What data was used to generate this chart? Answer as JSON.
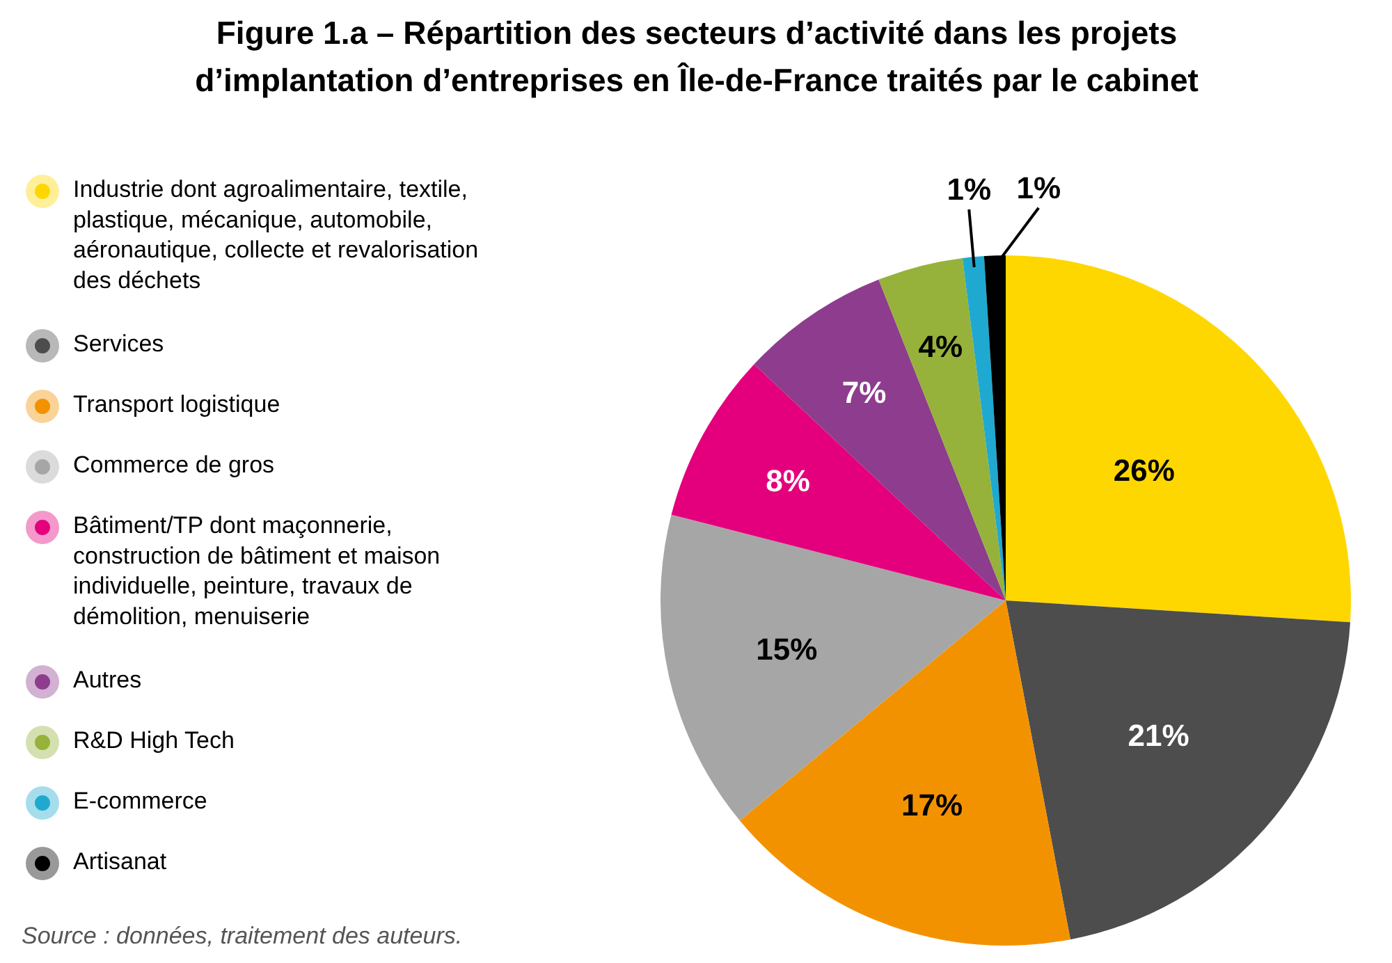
{
  "chart_data": {
    "type": "pie",
    "title": "Figure 1.a – Répartition des secteurs d’activité dans les projets d’implantation d’entreprises en Île-de-France traités par le cabinet",
    "categories": [
      "Industrie dont agroalimentaire, textile, plastique, mécanique, automobile, aéronautique, collecte et revalorisation des déchets",
      "Services",
      "Transport logistique",
      "Commerce de gros",
      "Bâtiment/TP dont maçonnerie, construction de bâtiment et maison individuelle, peinture, travaux de démolition, menuiserie",
      "Autres",
      "R&D High Tech",
      "E-commerce",
      "Artisanat"
    ],
    "values": [
      26,
      21,
      17,
      15,
      8,
      7,
      4,
      1,
      1
    ],
    "colors": [
      "#ffd700",
      "#4d4d4d",
      "#f39200",
      "#a6a6a6",
      "#e4007c",
      "#8e3c8e",
      "#96b23a",
      "#1fa9d0",
      "#000000"
    ],
    "value_labels": [
      "26%",
      "21%",
      "17%",
      "15%",
      "8%",
      "7%",
      "4%",
      "1%",
      "1%"
    ],
    "legend": "left",
    "annotations": [
      "Source : données, traitement des auteurs."
    ]
  }
}
